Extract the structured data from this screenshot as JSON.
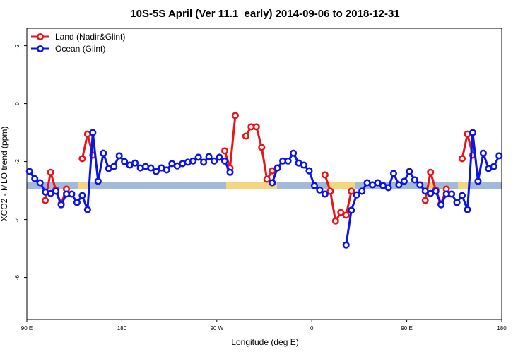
{
  "chart_data": {
    "type": "line",
    "title": "10S-5S April (Ver 11.1_early)   2014-09-06 to 2018-12-31",
    "xlabel": "Longitude (deg E)",
    "ylabel": "XCO2 - MLO trend (ppm)",
    "xlim": [
      90,
      540
    ],
    "ylim": [
      -7.45,
      2.6
    ],
    "xticks": [
      {
        "value": 90,
        "label": "90 E"
      },
      {
        "value": 180,
        "label": "180"
      },
      {
        "value": 270,
        "label": "90 W"
      },
      {
        "value": 360,
        "label": "0"
      },
      {
        "value": 450,
        "label": "90 E"
      },
      {
        "value": 540,
        "label": "180"
      }
    ],
    "yticks": [
      -6,
      -4,
      -2,
      0,
      2
    ],
    "legend": "top-left",
    "series": [
      {
        "name": "Land (Nadir&Glint)",
        "color": "#e8141a",
        "x": [
          107.5,
          112.5,
          117.5,
          122.5,
          127.5,
          135,
          142.5,
          147.5,
          152.5,
          200,
          277.5,
          282.5,
          287.5,
          292.5,
          297.5,
          302.5,
          307.5,
          312.5,
          317.5,
          322.5,
          347.5,
          372.5,
          377.5,
          382.5,
          387.5,
          392.5,
          397.5,
          430,
          467.5,
          472.5,
          477.5,
          482.5,
          487.5,
          495,
          502.5,
          507.5,
          512.5
        ],
        "values": [
          -3.34,
          -2.37,
          -2.98,
          -3.46,
          -2.95,
          null,
          -1.9,
          -1.05,
          -1.78,
          null,
          -1.63,
          -2.22,
          -0.41,
          null,
          -1.12,
          -0.8,
          -0.8,
          -1.51,
          -2.61,
          -2.32,
          null,
          -2.46,
          -3.02,
          -4.05,
          -3.76,
          -3.85,
          -3.02,
          null,
          -3.34,
          -2.37,
          -2.98,
          -3.46,
          -2.95,
          null,
          -1.9,
          -1.05,
          -1.78
        ]
      },
      {
        "name": "Ocean (Glint)",
        "color": "#0a14e6",
        "x": [
          92.5,
          97.5,
          102.5,
          107.5,
          112.5,
          117.5,
          122.5,
          127.5,
          132.5,
          137.5,
          142.5,
          147.5,
          152.5,
          157.5,
          162.5,
          167.5,
          172.5,
          177.5,
          182.5,
          187.5,
          192.5,
          197.5,
          202.5,
          207.5,
          212.5,
          217.5,
          222.5,
          227.5,
          232.5,
          237.5,
          242.5,
          247.5,
          252.5,
          257.5,
          262.5,
          267.5,
          272.5,
          277.5,
          282.5,
          300,
          322.5,
          327.5,
          332.5,
          337.5,
          342.5,
          347.5,
          352.5,
          357.5,
          362.5,
          367.5,
          372.5,
          385,
          392.5,
          397.5,
          402.5,
          407.5,
          412.5,
          417.5,
          422.5,
          427.5,
          432.5,
          437.5,
          442.5,
          447.5,
          452.5,
          457.5,
          462.5,
          467.5,
          472.5,
          477.5,
          482.5,
          487.5,
          492.5,
          497.5,
          502.5,
          507.5,
          512.5,
          517.5,
          522.5,
          527.5,
          532.5,
          537.5
        ],
        "values": [
          -2.34,
          -2.59,
          -2.73,
          -3.05,
          -3.1,
          -3.02,
          -3.49,
          -3.12,
          -3.12,
          -3.41,
          -3.17,
          -3.66,
          -1.0,
          -2.68,
          -1.71,
          -2.24,
          -2.17,
          -1.8,
          -2.0,
          -2.12,
          -2.05,
          -2.22,
          -2.17,
          -2.22,
          -2.34,
          -2.22,
          -2.29,
          -2.07,
          -2.15,
          -2.07,
          -2.02,
          -1.98,
          -1.85,
          -2.02,
          -1.83,
          -1.98,
          -1.85,
          -1.98,
          -2.37,
          null,
          -2.73,
          -2.22,
          -1.98,
          -1.98,
          -1.71,
          -2.05,
          -2.12,
          -2.32,
          -2.83,
          -2.98,
          -3.12,
          null,
          -4.88,
          -3.68,
          -3.15,
          -3.02,
          -2.73,
          -2.8,
          -2.73,
          -2.83,
          -2.9,
          -2.41,
          -2.8,
          -2.68,
          -2.34,
          -2.63,
          -2.8,
          -3.02,
          -3.1,
          -3.02,
          -3.49,
          -3.12,
          -3.12,
          -3.41,
          -3.17,
          -3.66,
          -1.0,
          -2.68,
          -1.71,
          -2.24,
          -2.17,
          -1.8
        ]
      }
    ]
  }
}
